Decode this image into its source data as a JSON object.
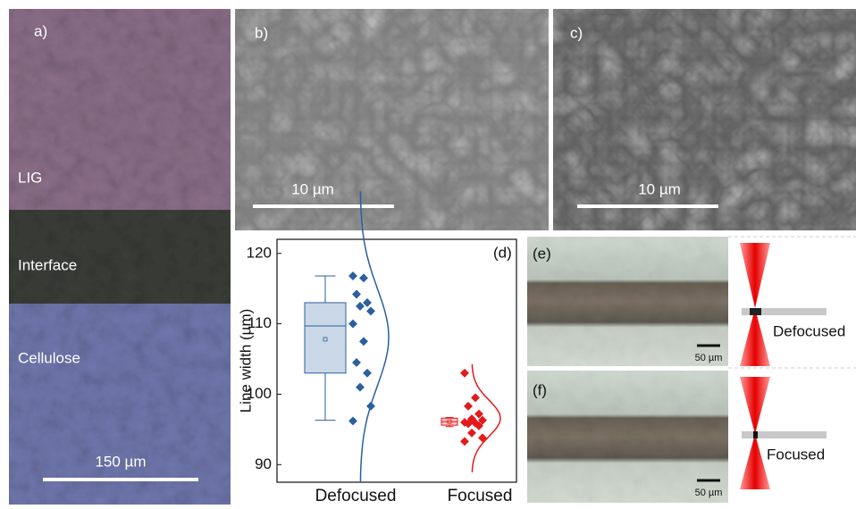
{
  "panels": {
    "a": {
      "label": "a)",
      "layers": [
        "LIG",
        "Interface",
        "Cellulose"
      ],
      "scale_bar": "150 µm"
    },
    "b": {
      "label": "b)",
      "scale_bar": "10 µm"
    },
    "c": {
      "label": "c)",
      "scale_bar": "10 µm"
    },
    "e": {
      "label": "(e)",
      "scale_bar": "50 µm",
      "schematic": "Defocused"
    },
    "f": {
      "label": "(f)",
      "scale_bar": "50 µm",
      "schematic": "Focused"
    }
  },
  "chart_data": {
    "type": "box",
    "label": "(d)",
    "ylabel": "Line width (µm)",
    "categories": [
      "Defocused",
      "Focused"
    ],
    "ylim": [
      87.5,
      122
    ],
    "yticks": [
      90,
      100,
      110,
      120
    ],
    "boxes": [
      {
        "color": "#2b5f9e",
        "whisker_low": 96.3,
        "q1": 103,
        "median": 109.7,
        "q3": 113,
        "whisker_high": 116.8,
        "mean": 107.8,
        "points": [
          116.8,
          116.5,
          114.2,
          113,
          112.5,
          111.8,
          110,
          107.5,
          104.5,
          103,
          101,
          98.3,
          96.2
        ]
      },
      {
        "color": "#e31a1c",
        "whisker_low": 95.4,
        "q1": 95.6,
        "median": 96.1,
        "q3": 96.6,
        "whisker_high": 96.7,
        "mean": 96.1,
        "points": [
          103,
          99.5,
          98.3,
          97.2,
          96.5,
          96.3,
          96,
          95.9,
          95.8,
          95.5,
          94.5,
          93.8,
          93.3
        ]
      }
    ]
  }
}
